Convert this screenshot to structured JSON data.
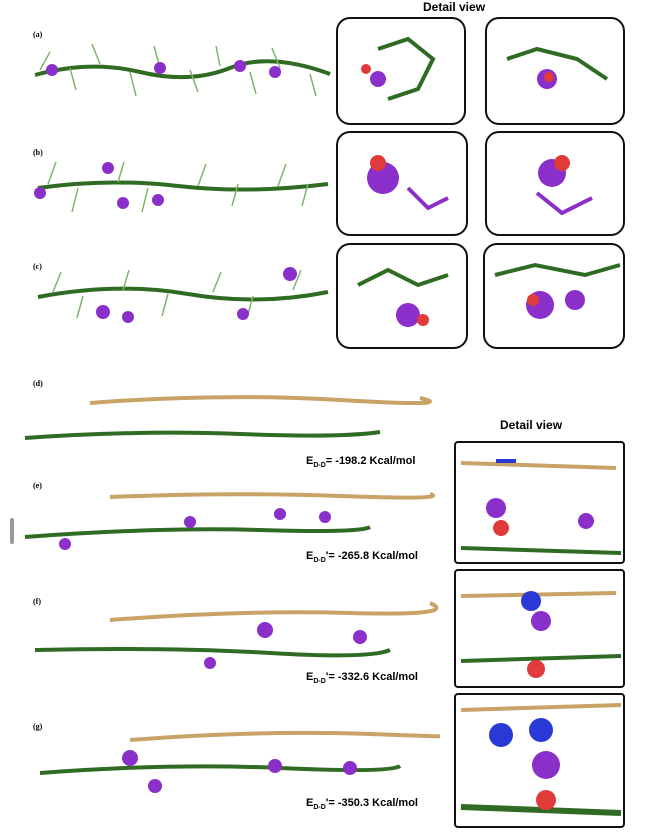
{
  "headers": {
    "top": "Detail view",
    "bottom": "Detail view"
  },
  "panels": [
    {
      "label": "(a)"
    },
    {
      "label": "(b)"
    },
    {
      "label": "(c)"
    },
    {
      "label": "(d)",
      "energy_sym": "E",
      "energy_sub": "D-D",
      "energy_val": "= -198.2 Kcal/mol"
    },
    {
      "label": "(e)",
      "energy_sym": "E",
      "energy_sub": "D-D",
      "energy_val": "'= -265.8 Kcal/mol"
    },
    {
      "label": "(f)",
      "energy_sym": "E",
      "energy_sub": "D-D",
      "energy_val": "'= -332.6 Kcal/mol"
    },
    {
      "label": "(g)",
      "energy_sym": "E",
      "energy_sub": "D-D",
      "energy_val": "'= -350.3 Kcal/mol"
    }
  ],
  "colors": {
    "polymer": "#2f6b22",
    "polymer_light": "#7fb56a",
    "ligand": "#8a2fc9",
    "ligand_red": "#e03a3a",
    "polymer2": "#c9a266",
    "blue": "#2a38d6"
  }
}
